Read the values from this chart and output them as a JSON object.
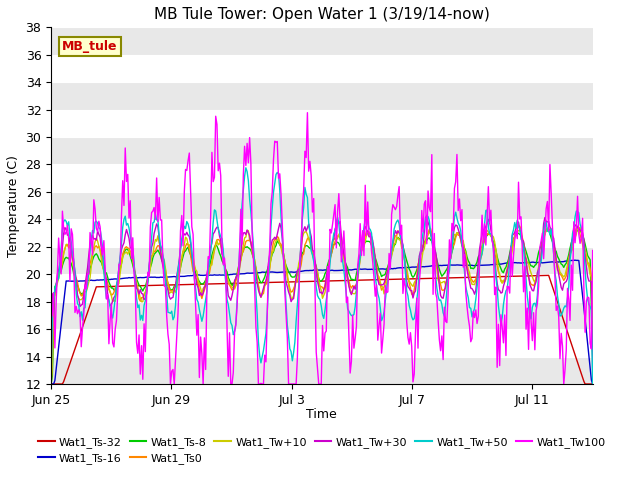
{
  "title": "MB Tule Tower: Open Water 1 (3/19/14-now)",
  "xlabel": "Time",
  "ylabel": "Temperature (C)",
  "ylim": [
    12,
    38
  ],
  "yticks": [
    12,
    14,
    16,
    18,
    20,
    22,
    24,
    26,
    28,
    30,
    32,
    34,
    36,
    38
  ],
  "background_color": "#ffffff",
  "plot_bg_color": "#ffffff",
  "series_colors": {
    "Wat1_Ts-32": "#cc0000",
    "Wat1_Ts-16": "#0000cc",
    "Wat1_Ts-8": "#00cc00",
    "Wat1_Ts0": "#ff8800",
    "Wat1_Tw+10": "#cccc00",
    "Wat1_Tw+30": "#cc00cc",
    "Wat1_Tw+50": "#00cccc",
    "Wat1_Tw100": "#ff00ff"
  },
  "annotation_text": "MB_tule",
  "annotation_color": "#cc0000",
  "annotation_bg": "#ffffcc",
  "annotation_border": "#888800",
  "xtick_positions": [
    0,
    4,
    8,
    12,
    16
  ],
  "xtick_labels": [
    "Jun 25",
    "Jun 29",
    "Jul 3",
    "Jul 7",
    "Jul 11"
  ],
  "xlim": [
    0,
    18
  ]
}
